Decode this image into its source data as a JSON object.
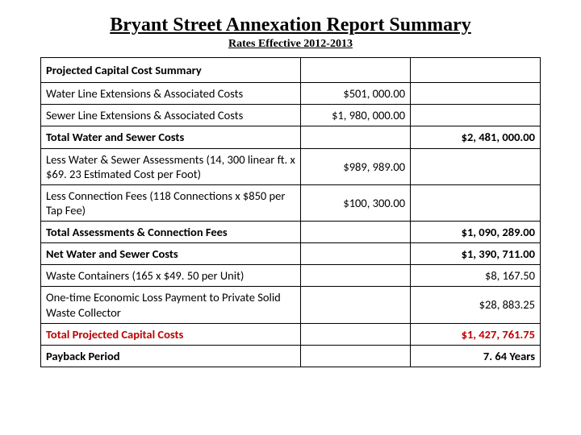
{
  "title": "Bryant Street Annexation Report Summary",
  "subtitle": "Rates Effective 2012-2013",
  "table": {
    "header": "Projected Capital Cost Summary",
    "rows": [
      {
        "label": "Water Line Extensions & Associated Costs",
        "mid": "$501, 000.00",
        "right": "",
        "bold": false,
        "red": false
      },
      {
        "label": "Sewer Line Extensions & Associated Costs",
        "mid": "$1, 980, 000.00",
        "right": "",
        "bold": false,
        "red": false
      },
      {
        "label": "Total Water and Sewer Costs",
        "mid": "",
        "right": "$2, 481, 000.00",
        "bold": true,
        "red": false
      },
      {
        "label": "Less Water & Sewer Assessments (14, 300 linear ft. x $69. 23 Estimated Cost per Foot)",
        "mid": "$989, 989.00",
        "right": "",
        "bold": false,
        "red": false
      },
      {
        "label": "Less Connection Fees (118 Connections x $850 per Tap Fee)",
        "mid": "$100, 300.00",
        "right": "",
        "bold": false,
        "red": false
      },
      {
        "label": "Total Assessments & Connection Fees",
        "mid": "",
        "right": "$1, 090, 289.00",
        "bold": true,
        "red": false
      },
      {
        "label": "Net Water and Sewer Costs",
        "mid": "",
        "right": "$1, 390, 711.00",
        "bold": true,
        "red": false
      },
      {
        "label": "Waste Containers (165  x $49. 50 per Unit)",
        "mid": "",
        "right": "$8, 167.50",
        "bold": false,
        "red": false
      },
      {
        "label": "One-time Economic Loss Payment to Private Solid Waste Collector",
        "mid": "",
        "right": "$28, 883.25",
        "bold": false,
        "red": false
      },
      {
        "label": "Total Projected Capital Costs",
        "mid": "",
        "right": "$1, 427, 761.75",
        "bold": true,
        "red": true
      },
      {
        "label": "Payback Period",
        "mid": "",
        "right": "7. 64 Years",
        "bold": true,
        "red": false
      }
    ]
  },
  "styles": {
    "title_fontsize": 24,
    "subtitle_fontsize": 14,
    "body_fontsize": 14.5,
    "border_color": "#000000",
    "text_color": "#000000",
    "emphasis_color": "#c00000",
    "background_color": "#ffffff",
    "col_widths_pct": [
      52,
      22,
      26
    ]
  }
}
